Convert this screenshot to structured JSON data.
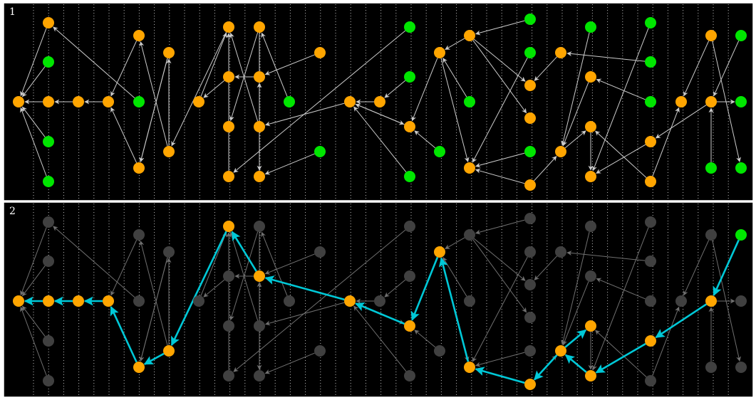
{
  "panels": [
    {
      "label": "1"
    },
    {
      "label": "2"
    }
  ],
  "colors": {
    "background": "#000000",
    "frame": "#ffffff",
    "gridline": "#bfbfbf",
    "node_orange": "#ffa500",
    "node_green": "#00e600",
    "node_dim": "#404040",
    "edge": "#cccccc",
    "edge_dim": "#707070",
    "path": "#00c8d7"
  },
  "graph": {
    "nodes": [
      {
        "id": "a1",
        "type": "orange"
      },
      {
        "id": "a2",
        "type": "orange"
      },
      {
        "id": "a3",
        "type": "green"
      },
      {
        "id": "a4",
        "type": "orange"
      },
      {
        "id": "a5",
        "type": "green"
      },
      {
        "id": "a6",
        "type": "green"
      },
      {
        "id": "a7",
        "type": "orange"
      },
      {
        "id": "a8",
        "type": "orange"
      },
      {
        "id": "a9",
        "type": "orange"
      },
      {
        "id": "a10",
        "type": "green"
      },
      {
        "id": "a11",
        "type": "orange"
      },
      {
        "id": "a12",
        "type": "orange"
      },
      {
        "id": "a13",
        "type": "orange"
      },
      {
        "id": "a14",
        "type": "orange"
      },
      {
        "id": "a15",
        "type": "orange"
      },
      {
        "id": "a16",
        "type": "orange"
      },
      {
        "id": "a17",
        "type": "orange"
      },
      {
        "id": "a18",
        "type": "orange"
      },
      {
        "id": "a19",
        "type": "orange"
      },
      {
        "id": "a20",
        "type": "orange"
      },
      {
        "id": "a21",
        "type": "orange"
      },
      {
        "id": "a22",
        "type": "orange"
      },
      {
        "id": "a23",
        "type": "green"
      },
      {
        "id": "a24",
        "type": "orange"
      },
      {
        "id": "a25",
        "type": "green"
      },
      {
        "id": "a26",
        "type": "orange"
      },
      {
        "id": "a27",
        "type": "orange"
      },
      {
        "id": "a28",
        "type": "green"
      },
      {
        "id": "a29",
        "type": "green"
      },
      {
        "id": "a30",
        "type": "orange"
      },
      {
        "id": "a31",
        "type": "green"
      },
      {
        "id": "a32",
        "type": "green"
      },
      {
        "id": "a33",
        "type": "orange"
      },
      {
        "id": "a34",
        "type": "orange"
      },
      {
        "id": "a35",
        "type": "green"
      },
      {
        "id": "a36",
        "type": "orange"
      },
      {
        "id": "a37",
        "type": "orange"
      },
      {
        "id": "a38",
        "type": "green"
      },
      {
        "id": "a39",
        "type": "green"
      },
      {
        "id": "a40",
        "type": "orange"
      },
      {
        "id": "a41",
        "type": "orange"
      },
      {
        "id": "a42",
        "type": "green"
      },
      {
        "id": "a43",
        "type": "orange"
      },
      {
        "id": "a44",
        "type": "green"
      },
      {
        "id": "a45",
        "type": "orange"
      },
      {
        "id": "a46",
        "type": "green"
      },
      {
        "id": "a47",
        "type": "orange"
      },
      {
        "id": "a48",
        "type": "orange"
      },
      {
        "id": "a49",
        "type": "orange"
      },
      {
        "id": "a50",
        "type": "green"
      },
      {
        "id": "a51",
        "type": "orange"
      },
      {
        "id": "a52",
        "type": "orange"
      },
      {
        "id": "a53",
        "type": "green"
      },
      {
        "id": "a54",
        "type": "green"
      },
      {
        "id": "a55",
        "type": "orange"
      },
      {
        "id": "a56",
        "type": "orange"
      },
      {
        "id": "a57",
        "type": "green"
      },
      {
        "id": "a58",
        "type": "orange"
      },
      {
        "id": "a59",
        "type": "green"
      },
      {
        "id": "a60",
        "type": "green"
      },
      {
        "id": "a61",
        "type": "orange"
      },
      {
        "id": "a62",
        "type": "green"
      },
      {
        "id": "a63",
        "type": "green"
      }
    ],
    "edges": [
      [
        "a4",
        "a1"
      ],
      [
        "a7",
        "a4"
      ],
      [
        "a8",
        "a7"
      ],
      [
        "a9",
        "a8"
      ],
      [
        "a2",
        "a1"
      ],
      [
        "a3",
        "a1"
      ],
      [
        "a5",
        "a1"
      ],
      [
        "a6",
        "a1"
      ],
      [
        "a10",
        "a2"
      ],
      [
        "a11",
        "a9"
      ],
      [
        "a12",
        "a11"
      ],
      [
        "a13",
        "a12"
      ],
      [
        "a14",
        "a13"
      ],
      [
        "a15",
        "a14"
      ],
      [
        "a16",
        "a15"
      ],
      [
        "a17",
        "a16"
      ],
      [
        "a19",
        "a18"
      ],
      [
        "a21",
        "a17"
      ],
      [
        "a22",
        "a21"
      ],
      [
        "a23",
        "a20"
      ],
      [
        "a24",
        "a22"
      ],
      [
        "a27",
        "a24"
      ],
      [
        "a30",
        "a27"
      ],
      [
        "a33",
        "a30"
      ],
      [
        "a36",
        "a33"
      ],
      [
        "a37",
        "a36"
      ],
      [
        "a40",
        "a37"
      ],
      [
        "a41",
        "a40"
      ],
      [
        "a45",
        "a41"
      ],
      [
        "a48",
        "a45"
      ],
      [
        "a52",
        "a48"
      ],
      [
        "a55",
        "a52"
      ],
      [
        "a56",
        "a55"
      ],
      [
        "a61",
        "a56"
      ],
      [
        "a63",
        "a61"
      ],
      [
        "a25",
        "a20"
      ],
      [
        "a26",
        "a19"
      ],
      [
        "a28",
        "a27"
      ],
      [
        "a29",
        "a26"
      ],
      [
        "a31",
        "a30"
      ],
      [
        "a32",
        "a30"
      ],
      [
        "a34",
        "a30"
      ],
      [
        "a35",
        "a29"
      ],
      [
        "a38",
        "a34"
      ],
      [
        "a39",
        "a26"
      ],
      [
        "a42",
        "a41"
      ],
      [
        "a43",
        "a36"
      ],
      [
        "a44",
        "a43"
      ],
      [
        "a46",
        "a45"
      ],
      [
        "a47",
        "a39"
      ],
      [
        "a49",
        "a47"
      ],
      [
        "a50",
        "a43"
      ],
      [
        "a51",
        "a49"
      ],
      [
        "a53",
        "a51"
      ],
      [
        "a54",
        "a58"
      ],
      [
        "a57",
        "a36"
      ],
      [
        "a58",
        "a44"
      ],
      [
        "a59",
        "a52"
      ],
      [
        "a60",
        "a49"
      ],
      [
        "a62",
        "a58"
      ],
      [
        "a18",
        "a9"
      ],
      [
        "a20",
        "a18"
      ],
      [
        "a12",
        "a11"
      ]
    ],
    "highlight_path": [
      "a63",
      "a61",
      "a56",
      "a55",
      "a52",
      "a48",
      "a45",
      "a41",
      "a40",
      "a37",
      "a36",
      "a33",
      "a30",
      "a27",
      "a24",
      "a22",
      "a21",
      "a17",
      "a16",
      "a15",
      "a14",
      "a13",
      "a12",
      "a11"
    ],
    "highlight_tail": [
      "a11",
      "a9",
      "a8",
      "a7",
      "a4",
      "a1"
    ],
    "panel2_lit": [
      "a63"
    ]
  }
}
